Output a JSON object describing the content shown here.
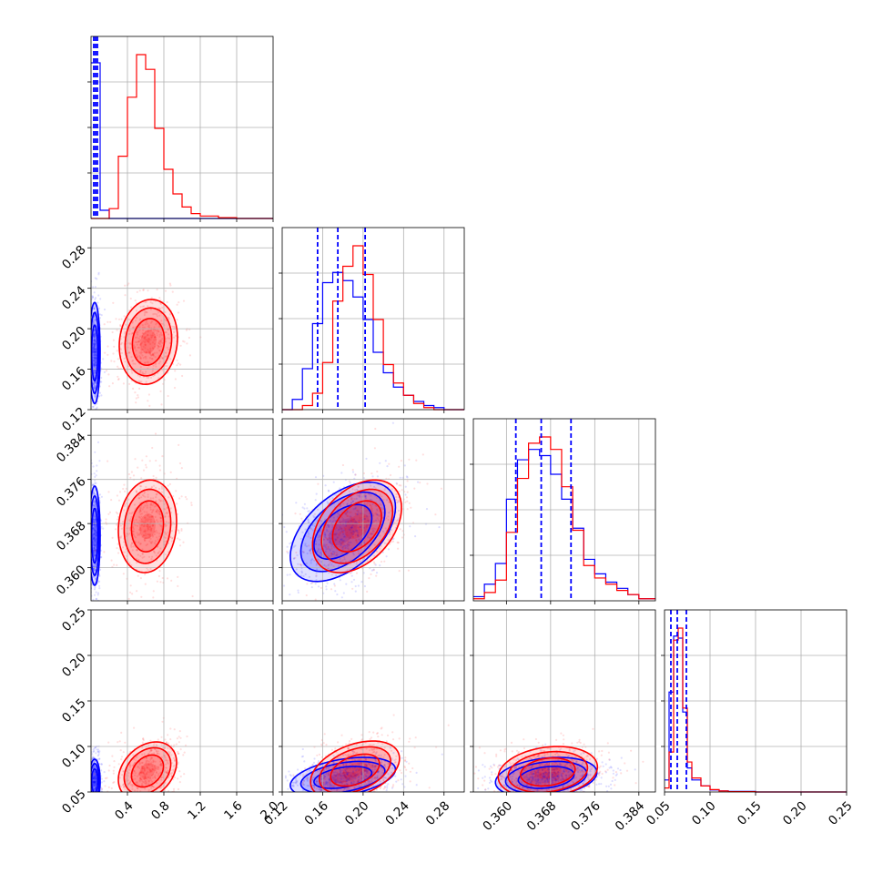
{
  "colors": {
    "series_a": "#0000ff",
    "series_b": "#ff0000",
    "grid": "#b0b0b0",
    "axis": "#000000"
  },
  "chart_data": {
    "type": "corner",
    "parameters": 4,
    "series": [
      {
        "color": "#0000ff"
      },
      {
        "color": "#ff0000"
      }
    ],
    "grid": true,
    "axes": [
      {
        "index": 0,
        "range": [
          0.0,
          2.0
        ],
        "ticks": [
          "0.4",
          "0.8",
          "1.2",
          "1.6",
          "2.0"
        ],
        "tick_values": [
          0.4,
          0.8,
          1.2,
          1.6,
          2.0
        ]
      },
      {
        "index": 1,
        "range": [
          0.12,
          0.3
        ],
        "ticks": [
          "0.12",
          "0.16",
          "0.20",
          "0.24",
          "0.28"
        ],
        "tick_values": [
          0.12,
          0.16,
          0.2,
          0.24,
          0.28
        ]
      },
      {
        "index": 2,
        "range": [
          0.354,
          0.387
        ],
        "ticks": [
          "0.360",
          "0.368",
          "0.376",
          "0.384"
        ],
        "tick_values": [
          0.36,
          0.368,
          0.376,
          0.384
        ]
      },
      {
        "index": 3,
        "range": [
          0.05,
          0.25
        ],
        "ticks": [
          "0.05",
          "0.10",
          "0.15",
          "0.20",
          "0.25"
        ],
        "tick_values": [
          0.05,
          0.1,
          0.15,
          0.2,
          0.25
        ]
      }
    ],
    "quantile_lines": {
      "series_a": [
        [
          0.03,
          0.05,
          0.07
        ],
        [
          0.155,
          0.175,
          0.202
        ],
        [
          0.3617,
          0.3663,
          0.3717
        ],
        [
          0.057,
          0.064,
          0.074
        ]
      ]
    },
    "histograms": [
      {
        "bins": [
          0.0,
          0.1,
          0.2,
          0.3,
          0.4,
          0.5,
          0.6,
          0.7,
          0.8,
          0.9,
          1.0,
          1.1,
          1.2,
          1.4,
          1.6,
          2.0
        ],
        "series_a": [
          95,
          5,
          0,
          0,
          0,
          0,
          0,
          0,
          0,
          0,
          0,
          0,
          0,
          0,
          0
        ],
        "series_b": [
          0,
          0,
          6,
          38,
          74,
          100,
          91,
          55,
          30,
          15,
          7,
          3,
          1.5,
          0.5,
          0
        ]
      },
      {
        "bins": [
          0.12,
          0.13,
          0.14,
          0.15,
          0.16,
          0.17,
          0.18,
          0.19,
          0.2,
          0.21,
          0.22,
          0.23,
          0.24,
          0.25,
          0.26,
          0.27,
          0.28,
          0.29,
          0.3
        ],
        "series_a": [
          0,
          5,
          20,
          42,
          62,
          67,
          63,
          55,
          44,
          28,
          18,
          11,
          7,
          4,
          2,
          1,
          0,
          0
        ],
        "series_b": [
          0,
          0,
          2,
          8,
          23,
          53,
          70,
          80,
          66,
          44,
          22,
          13,
          7,
          3,
          1,
          0,
          0,
          0
        ]
      },
      {
        "bins": [
          0.354,
          0.356,
          0.358,
          0.36,
          0.362,
          0.364,
          0.366,
          0.368,
          0.37,
          0.372,
          0.374,
          0.376,
          0.378,
          0.38,
          0.382,
          0.384,
          0.387
        ],
        "series_a": [
          2,
          8,
          18,
          49,
          68,
          73,
          70,
          61,
          49,
          35,
          20,
          13,
          9,
          6,
          3,
          1
        ],
        "series_b": [
          1,
          4,
          10,
          33,
          59,
          76,
          79,
          73,
          55,
          34,
          17,
          11,
          8,
          5,
          3,
          1
        ]
      },
      {
        "bins": [
          0.05,
          0.055,
          0.06,
          0.065,
          0.07,
          0.075,
          0.08,
          0.09,
          0.1,
          0.11,
          0.12,
          0.15,
          0.25
        ],
        "series_a": [
          6,
          50,
          78,
          77,
          40,
          12,
          6,
          3,
          1,
          0.5,
          0.3,
          0
        ],
        "series_b": [
          2,
          20,
          76,
          82,
          42,
          15,
          7,
          3,
          1.2,
          0.5,
          0.2,
          0
        ]
      }
    ],
    "contours": [
      {
        "row": 1,
        "col": 0,
        "series_a": {
          "mean": [
            0.04,
            0.176
          ],
          "sd": [
            0.03,
            0.025
          ],
          "rho": 0.0
        },
        "series_b": {
          "mean": [
            0.63,
            0.187
          ],
          "sd": [
            0.16,
            0.021
          ],
          "rho": 0.1
        }
      },
      {
        "row": 2,
        "col": 0,
        "series_a": {
          "mean": [
            0.04,
            0.3658
          ],
          "sd": [
            0.03,
            0.0045
          ],
          "rho": 0.0
        },
        "series_b": {
          "mean": [
            0.62,
            0.3675
          ],
          "sd": [
            0.16,
            0.0042
          ],
          "rho": 0.1
        }
      },
      {
        "row": 2,
        "col": 1,
        "series_a": {
          "mean": [
            0.18,
            0.3665
          ],
          "sd": [
            0.026,
            0.0045
          ],
          "rho": 0.5
        },
        "series_b": {
          "mean": [
            0.194,
            0.3675
          ],
          "sd": [
            0.022,
            0.0042
          ],
          "rho": 0.4
        }
      },
      {
        "row": 3,
        "col": 0,
        "series_a": {
          "mean": [
            0.04,
            0.062
          ],
          "sd": [
            0.03,
            0.012
          ],
          "rho": 0.0
        },
        "series_b": {
          "mean": [
            0.62,
            0.073
          ],
          "sd": [
            0.16,
            0.016
          ],
          "rho": 0.3
        }
      },
      {
        "row": 3,
        "col": 1,
        "series_a": {
          "mean": [
            0.18,
            0.066
          ],
          "sd": [
            0.026,
            0.011
          ],
          "rho": 0.4
        },
        "series_b": {
          "mean": [
            0.192,
            0.074
          ],
          "sd": [
            0.022,
            0.016
          ],
          "rho": 0.4
        }
      },
      {
        "row": 3,
        "col": 2,
        "series_a": {
          "mean": [
            0.3672,
            0.066
          ],
          "sd": [
            0.0046,
            0.011
          ],
          "rho": 0.25
        },
        "series_b": {
          "mean": [
            0.3675,
            0.072
          ],
          "sd": [
            0.0045,
            0.014
          ],
          "rho": 0.2
        }
      }
    ]
  }
}
